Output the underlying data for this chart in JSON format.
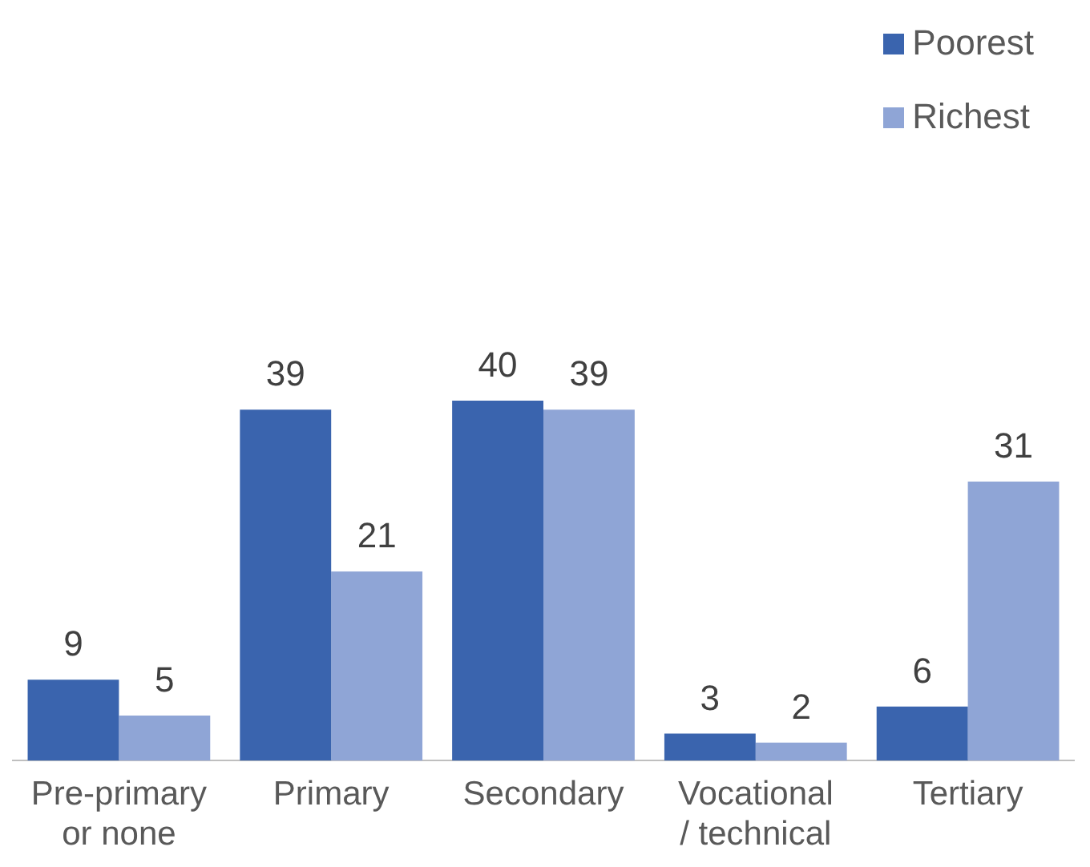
{
  "chart_data": {
    "type": "bar",
    "categories": [
      "Pre-primary\nor none",
      "Primary",
      "Secondary",
      "Vocational\n/ technical",
      "Tertiary"
    ],
    "series": [
      {
        "name": "Poorest",
        "color": "#3a64ae",
        "values": [
          9,
          39,
          40,
          3,
          6
        ]
      },
      {
        "name": "Richest",
        "color": "#8fa5d6",
        "values": [
          5,
          21,
          39,
          2,
          31
        ]
      }
    ],
    "data_labels": true,
    "legend": "top right",
    "grid": false
  }
}
